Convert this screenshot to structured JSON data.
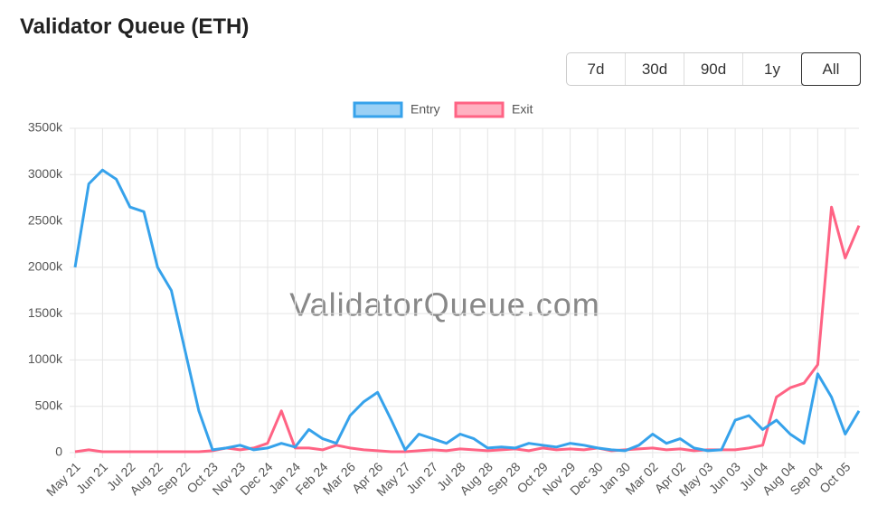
{
  "header": {
    "title": "Validator Queue (ETH)"
  },
  "range_buttons": [
    "7d",
    "30d",
    "90d",
    "1y",
    "All"
  ],
  "chart_data": {
    "type": "line",
    "watermark": "ValidatorQueue.com",
    "legend": "top",
    "grid": true,
    "categories": [
      "May 21",
      null,
      "Jun 21",
      null,
      "Jul 22",
      null,
      "Aug 22",
      null,
      "Sep 22",
      null,
      "Oct 23",
      null,
      "Nov 23",
      null,
      "Dec 24",
      null,
      "Jan 24",
      null,
      "Feb 24",
      null,
      "Mar 26",
      null,
      "Apr 26",
      null,
      "May 27",
      null,
      "Jun 27",
      null,
      "Jul 28",
      null,
      "Aug 28",
      null,
      "Sep 28",
      null,
      "Oct 29",
      null,
      "Nov 29",
      null,
      "Dec 30",
      null,
      "Jan 30",
      null,
      "Mar 02",
      null,
      "Apr 02",
      null,
      "May 03",
      null,
      "Jun 03",
      null,
      "Jul 04",
      null,
      "Aug 04",
      null,
      "Sep 04",
      null,
      "Oct 05",
      null
    ],
    "series": [
      {
        "name": "Entry",
        "color": "#36a2eb",
        "values": [
          2000,
          2900,
          3050,
          2950,
          2650,
          2600,
          2000,
          1750,
          1100,
          450,
          30,
          50,
          80,
          30,
          50,
          100,
          60,
          250,
          150,
          100,
          400,
          550,
          650,
          350,
          30,
          200,
          150,
          100,
          200,
          150,
          50,
          60,
          50,
          100,
          80,
          60,
          100,
          80,
          50,
          30,
          20,
          80,
          200,
          100,
          150,
          50,
          20,
          30,
          350,
          400,
          250,
          350,
          200,
          100,
          850,
          600,
          200,
          450
        ]
      },
      {
        "name": "Exit",
        "color": "#ff6384",
        "values": [
          10,
          30,
          10,
          10,
          10,
          10,
          10,
          10,
          10,
          10,
          20,
          50,
          30,
          50,
          100,
          450,
          50,
          50,
          30,
          80,
          50,
          30,
          20,
          10,
          10,
          20,
          30,
          20,
          40,
          30,
          20,
          30,
          40,
          20,
          50,
          30,
          40,
          30,
          50,
          20,
          30,
          40,
          50,
          30,
          40,
          20,
          30,
          30,
          30,
          50,
          80,
          600,
          700,
          750,
          950,
          2650,
          2100,
          2450
        ]
      }
    ],
    "ylim": [
      0,
      3500
    ],
    "yticks": [
      0,
      {
        "value": 500,
        "label": "500k"
      },
      {
        "value": 1000,
        "label": "1000k"
      },
      {
        "value": 1500,
        "label": "1500k"
      },
      {
        "value": 2000,
        "label": "2000k"
      },
      {
        "value": 2500,
        "label": "2500k"
      },
      {
        "value": 3000,
        "label": "3000k"
      },
      {
        "value": 3500,
        "label": "3500k"
      }
    ]
  }
}
